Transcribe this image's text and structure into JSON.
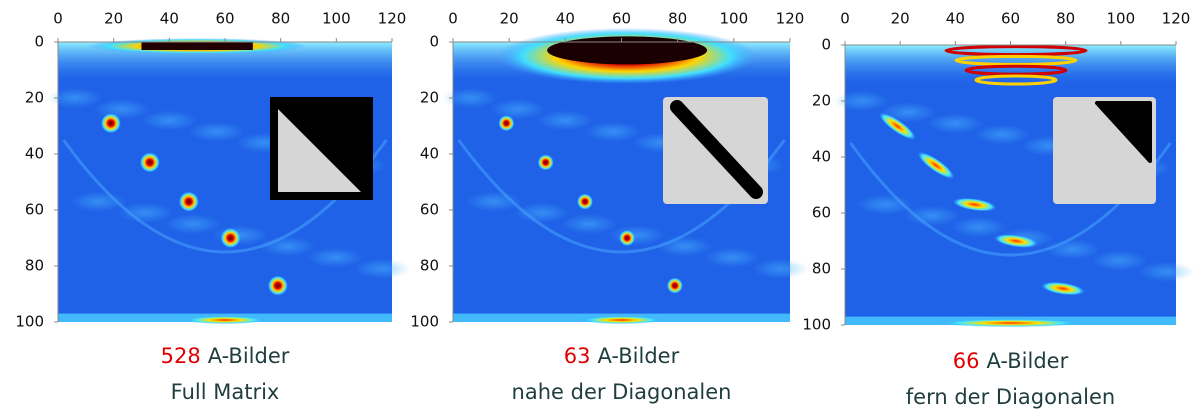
{
  "panels": [
    {
      "xticks": [
        0,
        20,
        40,
        60,
        80,
        100,
        120
      ],
      "yticks": [
        0,
        20,
        40,
        60,
        80,
        100
      ],
      "count": "528",
      "caption_line1": "A-Bilder",
      "caption_line2": "Full Matrix"
    },
    {
      "xticks": [
        0,
        20,
        40,
        60,
        80,
        100,
        120
      ],
      "yticks": [
        0,
        20,
        40,
        60,
        80,
        100
      ],
      "count": "63",
      "caption_line1": "A-Bilder",
      "caption_line2": "nahe der Diagonalen"
    },
    {
      "xticks": [
        0,
        20,
        40,
        60,
        80,
        100,
        120
      ],
      "yticks": [
        0,
        20,
        40,
        60,
        80,
        100
      ],
      "count": "66",
      "caption_line1": "A-Bilder",
      "caption_line2": "fern der Diagonalen"
    }
  ]
}
